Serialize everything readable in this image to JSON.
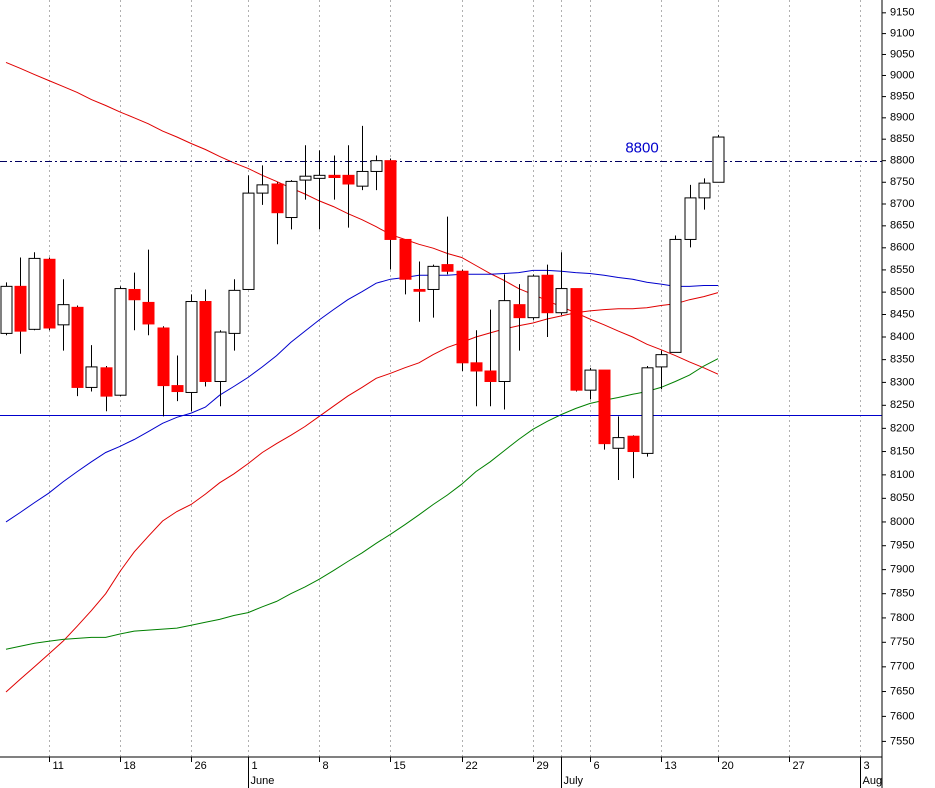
{
  "chart_data": {
    "type": "candlestick",
    "categories": [
      null,
      null,
      null,
      "11",
      null,
      null,
      null,
      null,
      "18",
      null,
      null,
      null,
      null,
      "26",
      null,
      null,
      null,
      "1",
      null,
      null,
      null,
      null,
      "8",
      null,
      null,
      null,
      null,
      "15",
      null,
      null,
      null,
      null,
      "22",
      null,
      null,
      null,
      null,
      "29",
      null,
      null,
      null,
      "6",
      null,
      null,
      null,
      null,
      "13",
      null,
      null,
      null,
      "20",
      null,
      null,
      null,
      null,
      "27",
      null,
      null,
      null,
      null,
      "3"
    ],
    "category_months": [
      null,
      null,
      null,
      null,
      null,
      null,
      null,
      null,
      null,
      null,
      null,
      null,
      null,
      null,
      null,
      null,
      null,
      "June",
      null,
      null,
      null,
      null,
      null,
      null,
      null,
      null,
      null,
      null,
      null,
      null,
      null,
      null,
      null,
      null,
      null,
      null,
      null,
      null,
      null,
      "July",
      null,
      null,
      null,
      null,
      null,
      null,
      null,
      null,
      null,
      null,
      null,
      null,
      null,
      null,
      null,
      null,
      null,
      null,
      null,
      null,
      "Aug"
    ],
    "open": [
      8408,
      8513,
      8417,
      8574,
      8427,
      8466,
      8289,
      8332,
      8272,
      8506,
      8477,
      8420,
      8293,
      8278,
      8479,
      8302,
      8408,
      8506,
      8725,
      8746,
      8669,
      8755,
      8759,
      8766,
      8766,
      8741,
      8775,
      8800,
      8619,
      8506,
      8506,
      8562,
      8547,
      8343,
      8325,
      8302,
      8472,
      8443,
      8538,
      8454,
      8508,
      8283,
      8327,
      8157,
      8183,
      8146,
      8334,
      8366,
      8619,
      8714,
      8750,
      null,
      null,
      null,
      null,
      null,
      null,
      null,
      null,
      null,
      null
    ],
    "high": [
      8522,
      8578,
      8590,
      8578,
      8529,
      8470,
      8382,
      8336,
      8513,
      8544,
      8596,
      8424,
      8359,
      8495,
      8506,
      8415,
      8529,
      8766,
      8789,
      8750,
      8755,
      8836,
      8824,
      8812,
      8836,
      8881,
      8812,
      8805,
      8619,
      8569,
      8562,
      8671,
      8551,
      8415,
      8461,
      8540,
      8518,
      8540,
      8562,
      8590,
      8508,
      8332,
      8327,
      8226,
      8185,
      8336,
      8370,
      8628,
      8744,
      8759,
      8860,
      null,
      null,
      null,
      null,
      null,
      null,
      null,
      null,
      null,
      null
    ],
    "low": [
      8404,
      8363,
      8415,
      8415,
      8370,
      8270,
      8280,
      8237,
      8270,
      8415,
      8404,
      8226,
      8259,
      8237,
      8291,
      8248,
      8370,
      8506,
      8698,
      8608,
      8642,
      8710,
      8642,
      8710,
      8646,
      8732,
      8732,
      8551,
      8495,
      8434,
      8443,
      8540,
      8325,
      8248,
      8248,
      8241,
      8370,
      8438,
      8400,
      8449,
      8280,
      8263,
      8154,
      8089,
      8093,
      8139,
      8285,
      8366,
      8601,
      8687,
      8750,
      null,
      null,
      null,
      null,
      null,
      null,
      null,
      null,
      null,
      null
    ],
    "close": [
      8513,
      8413,
      8576,
      8420,
      8472,
      8289,
      8334,
      8270,
      8508,
      8483,
      8429,
      8293,
      8280,
      8479,
      8302,
      8411,
      8504,
      8725,
      8744,
      8680,
      8752,
      8764,
      8766,
      8761,
      8746,
      8775,
      8800,
      8619,
      8529,
      8502,
      8558,
      8547,
      8343,
      8325,
      8302,
      8481,
      8443,
      8536,
      8454,
      8508,
      8283,
      8327,
      8167,
      8180,
      8150,
      8332,
      8361,
      8619,
      8714,
      8748,
      8855,
      null,
      null,
      null,
      null,
      null,
      null,
      null,
      null,
      null,
      null
    ],
    "up_color": "#ffffff",
    "down_color": "#ff0000",
    "overlays": [
      {
        "color": "#e00000",
        "values": [
          9031,
          9017,
          9002,
          8988,
          8974,
          8960,
          8943,
          8929,
          8914,
          8900,
          8886,
          8869,
          8855,
          8840,
          8826,
          8810,
          8795,
          8782,
          8766,
          8752,
          8737,
          8723,
          8707,
          8694,
          8678,
          8664,
          8648,
          8630,
          8619,
          8608,
          8599,
          8587,
          8578,
          8560,
          8542,
          8526,
          8508,
          8495,
          8481,
          8467,
          8454,
          8440,
          8427,
          8413,
          8400,
          8384,
          8372,
          8359,
          8345,
          8332,
          8318,
          null,
          null,
          null,
          null,
          null,
          null,
          null,
          null,
          null,
          null
        ]
      },
      {
        "color": "#0000cc",
        "values": [
          8000,
          8020,
          8041,
          8061,
          8085,
          8107,
          8128,
          8148,
          8161,
          8176,
          8193,
          8211,
          8224,
          8233,
          8246,
          8272,
          8291,
          8311,
          8334,
          8359,
          8388,
          8413,
          8438,
          8461,
          8483,
          8501,
          8520,
          8529,
          8533,
          8538,
          8538,
          8538,
          8540,
          8540,
          8540,
          8542,
          8544,
          8549,
          8549,
          8547,
          8544,
          8542,
          8538,
          8533,
          8529,
          8522,
          8518,
          8513,
          8513,
          8515,
          8515,
          null,
          null,
          null,
          null,
          null,
          null,
          null,
          null,
          null,
          null
        ]
      },
      {
        "color": "#e00000",
        "values": [
          7649,
          7675,
          7700,
          7726,
          7752,
          7783,
          7815,
          7850,
          7896,
          7937,
          7970,
          8002,
          8022,
          8037,
          8059,
          8083,
          8102,
          8124,
          8148,
          8167,
          8185,
          8204,
          8226,
          8248,
          8270,
          8289,
          8309,
          8320,
          8332,
          8343,
          8361,
          8377,
          8388,
          8400,
          8409,
          8418,
          8425,
          8431,
          8440,
          8447,
          8454,
          8458,
          8461,
          8463,
          8463,
          8465,
          8470,
          8474,
          8483,
          8490,
          8499,
          null,
          null,
          null,
          null,
          null,
          null,
          null,
          null,
          null,
          null
        ]
      },
      {
        "color": "#008000",
        "values": [
          7736,
          7742,
          7748,
          7752,
          7756,
          7758,
          7760,
          7760,
          7767,
          7773,
          7775,
          7777,
          7779,
          7785,
          7791,
          7797,
          7805,
          7811,
          7823,
          7834,
          7850,
          7864,
          7880,
          7898,
          7917,
          7935,
          7955,
          7974,
          7994,
          8015,
          8037,
          8057,
          8080,
          8107,
          8128,
          8152,
          8176,
          8198,
          8215,
          8230,
          8243,
          8254,
          8261,
          8267,
          8274,
          8280,
          8289,
          8302,
          8316,
          8336,
          8352,
          null,
          null,
          null,
          null,
          null,
          null,
          null,
          null,
          null,
          null
        ]
      }
    ],
    "reference_lines": [
      {
        "value": 8800,
        "color": "#000060",
        "style": "dashdot",
        "label_color": "#0000cc"
      },
      {
        "value": 8228,
        "color": "#0000cc",
        "style": "solid"
      }
    ],
    "ylim": [
      7519,
      9181
    ],
    "yticks": [
      7550,
      7600,
      7650,
      7700,
      7750,
      7800,
      7850,
      7900,
      7950,
      8000,
      8050,
      8100,
      8150,
      8200,
      8250,
      8300,
      8350,
      8400,
      8450,
      8500,
      8550,
      8600,
      8650,
      8700,
      8750,
      8800,
      8850,
      8900,
      8950,
      9000,
      9050,
      9100,
      9150
    ],
    "log_scale": true,
    "grid": true
  }
}
